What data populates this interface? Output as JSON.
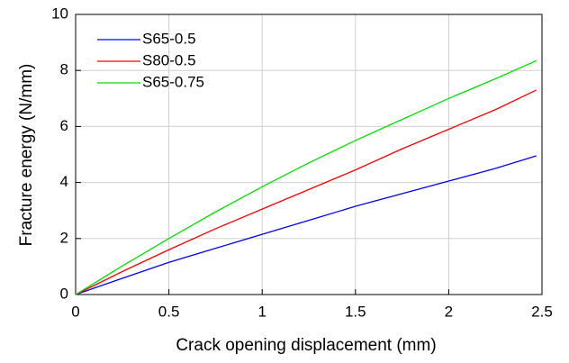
{
  "chart_data": {
    "type": "line",
    "xlabel": "Crack opening  displacement  (mm)",
    "ylabel": "Fracture energy  (N/mm)",
    "x": [
      0,
      0.25,
      0.5,
      0.75,
      1,
      1.25,
      1.5,
      1.75,
      2,
      2.25,
      2.47
    ],
    "series": [
      {
        "name": "S65-0.5",
        "color": "#0000ff",
        "values": [
          0,
          0.58,
          1.15,
          1.65,
          2.15,
          2.65,
          3.15,
          3.6,
          4.05,
          4.5,
          4.95
        ]
      },
      {
        "name": "S80-0.5",
        "color": "#ff0000",
        "values": [
          0,
          0.82,
          1.6,
          2.35,
          3.05,
          3.75,
          4.45,
          5.2,
          5.9,
          6.6,
          7.3
        ]
      },
      {
        "name": "S65-0.75",
        "color": "#00e000",
        "values": [
          0,
          1.02,
          2.0,
          2.95,
          3.85,
          4.7,
          5.5,
          6.25,
          7.0,
          7.7,
          8.35
        ]
      }
    ],
    "xlim": [
      0,
      2.5
    ],
    "xticks": [
      0,
      0.5,
      1,
      1.5,
      2,
      2.5
    ],
    "ylim": [
      0,
      10
    ],
    "yticks": [
      0,
      2,
      4,
      6,
      8,
      10
    ],
    "grid": true,
    "legend": "upper-left"
  }
}
